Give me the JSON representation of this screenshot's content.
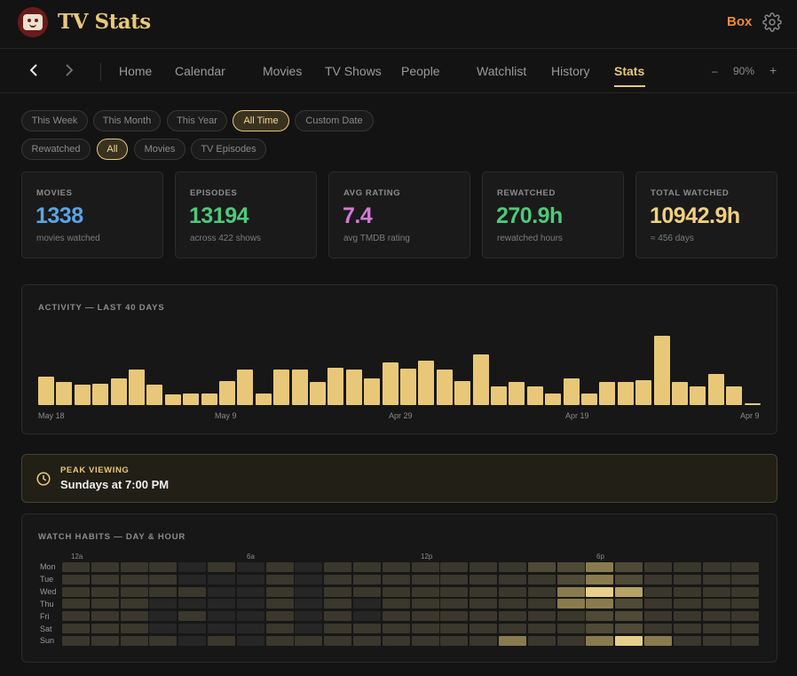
{
  "header": {
    "app_title": "TV Stats",
    "box_label": "Box",
    "icons": {
      "logo": "tv-face-logo",
      "settings": "gear-icon"
    }
  },
  "nav": {
    "items": [
      "Home",
      "Calendar",
      "Movies",
      "TV Shows",
      "People",
      "Watchlist",
      "History",
      "Stats"
    ],
    "active": "Stats",
    "zoom": {
      "minus": "–",
      "value": "90%",
      "plus": "+"
    }
  },
  "filters": {
    "periods": [
      "This Week",
      "This Month",
      "This Year",
      "All Time",
      "Custom Date"
    ],
    "active_period": "All Time",
    "types": [
      "Rewatched",
      "All",
      "Movies",
      "TV Episodes"
    ],
    "active_type": "All"
  },
  "cards": [
    {
      "label": "MOVIES",
      "value": "1338",
      "sub": "movies watched",
      "color": "#5aa5e8"
    },
    {
      "label": "EPISODES",
      "value": "13194",
      "sub": "across 422 shows",
      "color": "#4ec97a"
    },
    {
      "label": "AVG RATING",
      "value": "7.4",
      "sub": "avg TMDB rating",
      "color": "#d778d8"
    },
    {
      "label": "REWATCHED",
      "value": "270.9h",
      "sub": "rewatched hours",
      "color": "#4ec97a"
    },
    {
      "label": "TOTAL WATCHED",
      "value": "10942.9h",
      "sub": "≈ 456 days",
      "color": "#f0d080"
    }
  ],
  "activity": {
    "title": "ACTIVITY — LAST 40 DAYS",
    "x_labels": [
      "May 18",
      "May 9",
      "Apr 29",
      "Apr 19",
      "Apr 9"
    ],
    "bar_color": "#e8c878"
  },
  "chart_data": {
    "type": "bar",
    "categories": [
      "May 18",
      "May 17",
      "May 16",
      "May 15",
      "May 14",
      "May 13",
      "May 12",
      "May 11",
      "May 10",
      "May 9",
      "May 8",
      "May 7",
      "May 6",
      "May 5",
      "May 4",
      "May 3",
      "May 2",
      "May 1",
      "Apr 30",
      "Apr 29",
      "Apr 28",
      "Apr 27",
      "Apr 26",
      "Apr 25",
      "Apr 24",
      "Apr 23",
      "Apr 22",
      "Apr 21",
      "Apr 20",
      "Apr 19",
      "Apr 18",
      "Apr 17",
      "Apr 16",
      "Apr 15",
      "Apr 14",
      "Apr 13",
      "Apr 12",
      "Apr 11",
      "Apr 10",
      "Apr 9"
    ],
    "values": [
      8,
      6.5,
      5.8,
      6,
      7.5,
      10,
      5.8,
      3,
      3.2,
      3.2,
      6.8,
      10,
      3.2,
      10,
      10,
      6.5,
      10.5,
      10,
      7.5,
      12,
      10.2,
      12.5,
      10,
      6.8,
      14.2,
      5.2,
      6.5,
      5.2,
      3.2,
      7.5,
      3.2,
      6.5,
      6.5,
      7,
      19.5,
      6.5,
      5.2,
      8.8,
      5.2,
      0.4
    ],
    "title": "ACTIVITY — LAST 40 DAYS",
    "x_tick_labels": [
      "May 18",
      "May 9",
      "Apr 29",
      "Apr 19",
      "Apr 9"
    ],
    "ylim": [
      0,
      20
    ]
  },
  "peak": {
    "label": "PEAK VIEWING",
    "value": "Sundays at 7:00 PM",
    "icon": "clock-icon"
  },
  "habits": {
    "title": "WATCH HABITS — DAY & HOUR",
    "days": [
      "Mon",
      "Tue",
      "Wed",
      "Thu",
      "Fri",
      "Sat",
      "Sun"
    ],
    "hour_labels": [
      "12a",
      "6a",
      "12p",
      "6p"
    ],
    "intensity": [
      [
        2,
        2,
        2,
        2,
        1,
        2,
        1,
        2,
        1,
        2,
        2,
        2,
        2,
        2,
        2,
        2,
        3,
        3,
        4,
        3,
        2,
        2,
        2,
        2
      ],
      [
        2,
        2,
        2,
        2,
        1,
        1,
        1,
        2,
        1,
        2,
        2,
        2,
        2,
        2,
        2,
        2,
        2,
        3,
        4,
        3,
        2,
        2,
        2,
        2
      ],
      [
        2,
        2,
        2,
        2,
        2,
        1,
        1,
        2,
        1,
        2,
        2,
        2,
        2,
        2,
        2,
        2,
        2,
        4,
        6,
        5,
        2,
        2,
        2,
        2
      ],
      [
        2,
        2,
        2,
        1,
        1,
        1,
        1,
        2,
        1,
        2,
        1,
        2,
        2,
        2,
        2,
        2,
        2,
        4,
        4,
        3,
        2,
        2,
        2,
        2
      ],
      [
        2,
        2,
        2,
        1,
        2,
        1,
        1,
        2,
        1,
        2,
        1,
        2,
        2,
        2,
        2,
        2,
        2,
        2,
        3,
        3,
        2,
        2,
        2,
        2
      ],
      [
        2,
        2,
        2,
        1,
        1,
        1,
        1,
        2,
        1,
        2,
        2,
        2,
        2,
        2,
        2,
        2,
        2,
        2,
        3,
        3,
        2,
        2,
        2,
        2
      ],
      [
        2,
        2,
        2,
        2,
        1,
        2,
        1,
        2,
        2,
        2,
        2,
        2,
        2,
        2,
        2,
        4,
        2,
        2,
        4,
        6,
        4,
        2,
        2,
        2
      ]
    ]
  }
}
